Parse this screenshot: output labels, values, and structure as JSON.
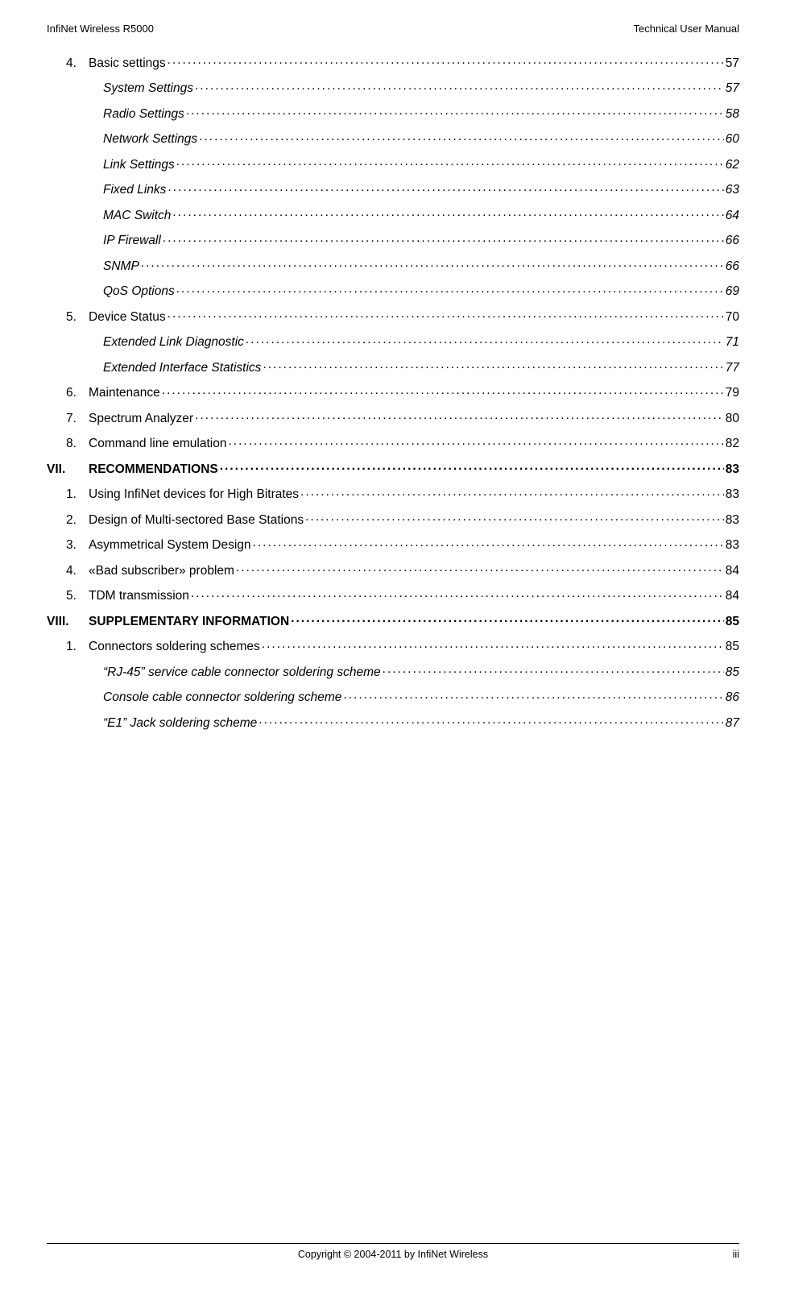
{
  "header": {
    "left": "InfiNet Wireless R5000",
    "right": "Technical User Manual"
  },
  "toc": [
    {
      "type": "num",
      "num": "4.",
      "label": "Basic settings",
      "page": "57"
    },
    {
      "type": "sub",
      "label": "System Settings",
      "page": "57"
    },
    {
      "type": "sub",
      "label": "Radio Settings",
      "page": "58"
    },
    {
      "type": "sub",
      "label": "Network Settings",
      "page": "60"
    },
    {
      "type": "sub",
      "label": "Link Settings",
      "page": "62"
    },
    {
      "type": "sub",
      "label": "Fixed Links",
      "page": "63"
    },
    {
      "type": "sub",
      "label": "MAC Switch",
      "page": "64"
    },
    {
      "type": "sub",
      "label": "IP Firewall",
      "page": "66"
    },
    {
      "type": "sub",
      "label": "SNMP",
      "page": "66"
    },
    {
      "type": "sub",
      "label": "QoS Options",
      "page": "69"
    },
    {
      "type": "num",
      "num": "5.",
      "label": "Device Status",
      "page": "70"
    },
    {
      "type": "sub",
      "label": "Extended Link Diagnostic",
      "page": "71"
    },
    {
      "type": "sub",
      "label": "Extended Interface Statistics",
      "page": "77"
    },
    {
      "type": "num",
      "num": "6.",
      "label": "Maintenance",
      "page": "79"
    },
    {
      "type": "num",
      "num": "7.",
      "label": "Spectrum Analyzer",
      "page": "80"
    },
    {
      "type": "num",
      "num": "8.",
      "label": "Command line emulation",
      "page": "82"
    },
    {
      "type": "roman",
      "num": "VII.",
      "label": "RECOMMENDATIONS",
      "page": "83"
    },
    {
      "type": "num",
      "num": "1.",
      "label": "Using InfiNet devices for High Bitrates",
      "page": "83"
    },
    {
      "type": "num",
      "num": "2.",
      "label": "Design of Multi-sectored Base Stations",
      "page": "83"
    },
    {
      "type": "num",
      "num": "3.",
      "label": "Asymmetrical System Design",
      "page": "83"
    },
    {
      "type": "num",
      "num": "4.",
      "label": "«Bad subscriber» problem",
      "page": "84"
    },
    {
      "type": "num",
      "num": "5.",
      "label": "TDM transmission",
      "page": "84"
    },
    {
      "type": "roman",
      "num": "VIII.",
      "label": "SUPPLEMENTARY INFORMATION",
      "page": "85"
    },
    {
      "type": "num",
      "num": "1.",
      "label": "Connectors soldering schemes",
      "page": "85"
    },
    {
      "type": "sub",
      "label": "“RJ-45” service cable connector soldering scheme",
      "page": "85"
    },
    {
      "type": "sub",
      "label": "Console cable connector soldering scheme",
      "page": "86"
    },
    {
      "type": "sub",
      "label": "“E1” Jack soldering scheme",
      "page": "87"
    }
  ],
  "footer": {
    "center": "Copyright © 2004-2011 by InfiNet Wireless",
    "right": "iii"
  }
}
